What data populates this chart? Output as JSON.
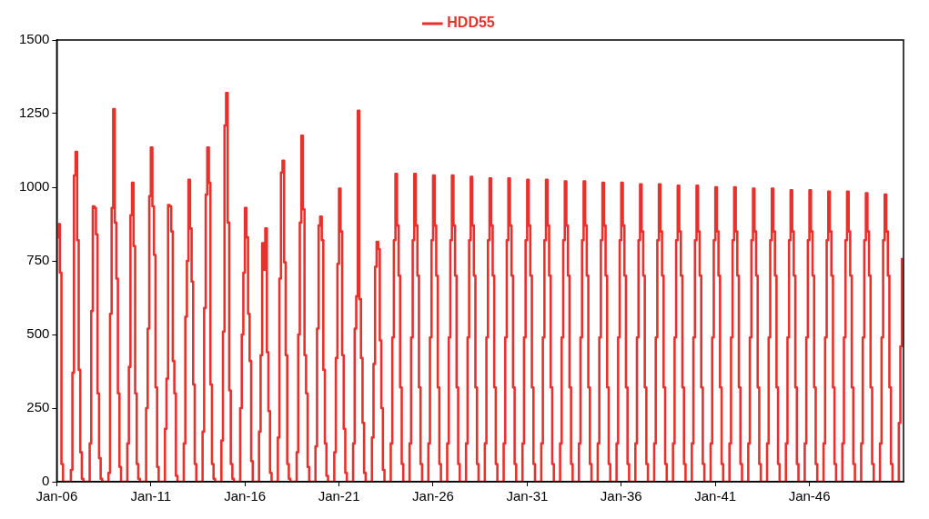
{
  "chart_data": {
    "type": "step",
    "legend": "top",
    "grid": false,
    "marker": "none",
    "xlim": [
      "2006-01",
      "2051-01"
    ],
    "xticks": [
      {
        "value": "2006-01",
        "label": "Jan-06"
      },
      {
        "value": "2011-01",
        "label": "Jan-11"
      },
      {
        "value": "2016-01",
        "label": "Jan-16"
      },
      {
        "value": "2021-01",
        "label": "Jan-21"
      },
      {
        "value": "2026-01",
        "label": "Jan-26"
      },
      {
        "value": "2031-01",
        "label": "Jan-31"
      },
      {
        "value": "2036-01",
        "label": "Jan-36"
      },
      {
        "value": "2041-01",
        "label": "Jan-41"
      },
      {
        "value": "2046-01",
        "label": "Jan-46"
      }
    ],
    "ylim": [
      0,
      1500
    ],
    "yticks": [
      0,
      250,
      500,
      750,
      1000,
      1250,
      1500
    ],
    "series": [
      {
        "name": "HDD55",
        "color": "#e8312c",
        "x": [
          "2006-01",
          "2006-02",
          "2006-03",
          "2006-04",
          "2006-05",
          "2006-10",
          "2006-11",
          "2006-12",
          "2007-01",
          "2007-02",
          "2007-03",
          "2007-04",
          "2007-05",
          "2007-06",
          "2007-10",
          "2007-11",
          "2007-12",
          "2008-01",
          "2008-02",
          "2008-03",
          "2008-04",
          "2008-05",
          "2008-06",
          "2008-10",
          "2008-11",
          "2008-12",
          "2009-01",
          "2009-02",
          "2009-03",
          "2009-04",
          "2009-05",
          "2009-06",
          "2009-10",
          "2009-11",
          "2009-12",
          "2010-01",
          "2010-02",
          "2010-03",
          "2010-04",
          "2010-05",
          "2010-06",
          "2010-10",
          "2010-11",
          "2010-12",
          "2011-01",
          "2011-02",
          "2011-03",
          "2011-04",
          "2011-05",
          "2011-06",
          "2011-10",
          "2011-11",
          "2011-12",
          "2012-01",
          "2012-02",
          "2012-03",
          "2012-04",
          "2012-05",
          "2012-06",
          "2012-10",
          "2012-11",
          "2012-12",
          "2013-01",
          "2013-02",
          "2013-03",
          "2013-04",
          "2013-05",
          "2013-06",
          "2013-10",
          "2013-11",
          "2013-12",
          "2014-01",
          "2014-02",
          "2014-03",
          "2014-04",
          "2014-05",
          "2014-06",
          "2014-10",
          "2014-11",
          "2014-12",
          "2015-01",
          "2015-02",
          "2015-03",
          "2015-04",
          "2015-05",
          "2015-06",
          "2015-10",
          "2015-11",
          "2015-12",
          "2016-01",
          "2016-02",
          "2016-03",
          "2016-04",
          "2016-05",
          "2016-06",
          "2016-10",
          "2016-11",
          "2016-12",
          "2017-01",
          "2017-02",
          "2017-03",
          "2017-04",
          "2017-05",
          "2017-06",
          "2017-10",
          "2017-11",
          "2017-12",
          "2018-01",
          "2018-02",
          "2018-03",
          "2018-04",
          "2018-05",
          "2018-06",
          "2018-10",
          "2018-11",
          "2018-12",
          "2019-01",
          "2019-02",
          "2019-03",
          "2019-04",
          "2019-05",
          "2019-06",
          "2019-10",
          "2019-11",
          "2019-12",
          "2020-01",
          "2020-02",
          "2020-03",
          "2020-04",
          "2020-05",
          "2020-06",
          "2020-10",
          "2020-11",
          "2020-12",
          "2021-01",
          "2021-02",
          "2021-03",
          "2021-04",
          "2021-05",
          "2021-06",
          "2021-10",
          "2021-11",
          "2021-12",
          "2022-01",
          "2022-02",
          "2022-03",
          "2022-04",
          "2022-05",
          "2022-06",
          "2022-10",
          "2022-11",
          "2022-12",
          "2023-01",
          "2023-02",
          "2023-03",
          "2023-04",
          "2023-05",
          "2023-06",
          "2023-10",
          "2023-11",
          "2023-12",
          "2024-01",
          "2024-02",
          "2024-03",
          "2024-04",
          "2024-05",
          "2024-06",
          "2024-10",
          "2024-11",
          "2024-12",
          "2025-01",
          "2025-02",
          "2025-03",
          "2025-04",
          "2025-05",
          "2025-06",
          "2025-10",
          "2025-11",
          "2025-12",
          "2026-01",
          "2026-02",
          "2026-03",
          "2026-04",
          "2026-05",
          "2026-06",
          "2026-10",
          "2026-11",
          "2026-12",
          "2027-01",
          "2027-02",
          "2027-03",
          "2027-04",
          "2027-05",
          "2027-06",
          "2027-10",
          "2027-11",
          "2027-12",
          "2028-01",
          "2028-02",
          "2028-03",
          "2028-04",
          "2028-05",
          "2028-06",
          "2028-10",
          "2028-11",
          "2028-12",
          "2029-01",
          "2029-02",
          "2029-03",
          "2029-04",
          "2029-05",
          "2029-06",
          "2029-10",
          "2029-11",
          "2029-12",
          "2030-01",
          "2030-02",
          "2030-03",
          "2030-04",
          "2030-05",
          "2030-06",
          "2030-10",
          "2030-11",
          "2030-12",
          "2031-01",
          "2031-02",
          "2031-03",
          "2031-04",
          "2031-05",
          "2031-06",
          "2031-10",
          "2031-11",
          "2031-12",
          "2032-01",
          "2032-02",
          "2032-03",
          "2032-04",
          "2032-05",
          "2032-06",
          "2032-10",
          "2032-11",
          "2032-12",
          "2033-01",
          "2033-02",
          "2033-03",
          "2033-04",
          "2033-05",
          "2033-06",
          "2033-10",
          "2033-11",
          "2033-12",
          "2034-01",
          "2034-02",
          "2034-03",
          "2034-04",
          "2034-05",
          "2034-06",
          "2034-10",
          "2034-11",
          "2034-12",
          "2035-01",
          "2035-02",
          "2035-03",
          "2035-04",
          "2035-05",
          "2035-06",
          "2035-10",
          "2035-11",
          "2035-12",
          "2036-01",
          "2036-02",
          "2036-03",
          "2036-04",
          "2036-05",
          "2036-06",
          "2036-10",
          "2036-11",
          "2036-12",
          "2037-01",
          "2037-02",
          "2037-03",
          "2037-04",
          "2037-05",
          "2037-06",
          "2037-10",
          "2037-11",
          "2037-12",
          "2038-01",
          "2038-02",
          "2038-03",
          "2038-04",
          "2038-05",
          "2038-06",
          "2038-10",
          "2038-11",
          "2038-12",
          "2039-01",
          "2039-02",
          "2039-03",
          "2039-04",
          "2039-05",
          "2039-06",
          "2039-10",
          "2039-11",
          "2039-12",
          "2040-01",
          "2040-02",
          "2040-03",
          "2040-04",
          "2040-05",
          "2040-06",
          "2040-10",
          "2040-11",
          "2040-12",
          "2041-01",
          "2041-02",
          "2041-03",
          "2041-04",
          "2041-05",
          "2041-06",
          "2041-10",
          "2041-11",
          "2041-12",
          "2042-01",
          "2042-02",
          "2042-03",
          "2042-04",
          "2042-05",
          "2042-06",
          "2042-10",
          "2042-11",
          "2042-12",
          "2043-01",
          "2043-02",
          "2043-03",
          "2043-04",
          "2043-05",
          "2043-06",
          "2043-10",
          "2043-11",
          "2043-12",
          "2044-01",
          "2044-02",
          "2044-03",
          "2044-04",
          "2044-05",
          "2044-06",
          "2044-10",
          "2044-11",
          "2044-12",
          "2045-01",
          "2045-02",
          "2045-03",
          "2045-04",
          "2045-05",
          "2045-06",
          "2045-10",
          "2045-11",
          "2045-12",
          "2046-01",
          "2046-02",
          "2046-03",
          "2046-04",
          "2046-05",
          "2046-06",
          "2046-10",
          "2046-11",
          "2046-12",
          "2047-01",
          "2047-02",
          "2047-03",
          "2047-04",
          "2047-05",
          "2047-06",
          "2047-10",
          "2047-11",
          "2047-12",
          "2048-01",
          "2048-02",
          "2048-03",
          "2048-04",
          "2048-05",
          "2048-06",
          "2048-10",
          "2048-11",
          "2048-12",
          "2049-01",
          "2049-02",
          "2049-03",
          "2049-04",
          "2049-05",
          "2049-06",
          "2049-10",
          "2049-11",
          "2049-12",
          "2050-01",
          "2050-02",
          "2050-03",
          "2050-04",
          "2050-05",
          "2050-06",
          "2050-10",
          "2050-11",
          "2050-12"
        ],
        "values": [
          830,
          875,
          710,
          60,
          0,
          40,
          370,
          1040,
          1120,
          820,
          380,
          100,
          10,
          0,
          130,
          580,
          935,
          930,
          840,
          300,
          80,
          10,
          0,
          30,
          570,
          930,
          1265,
          880,
          690,
          300,
          50,
          0,
          130,
          390,
          905,
          1015,
          800,
          300,
          60,
          10,
          0,
          250,
          520,
          970,
          1135,
          935,
          770,
          320,
          50,
          0,
          180,
          350,
          940,
          935,
          850,
          410,
          300,
          20,
          0,
          130,
          560,
          750,
          1025,
          860,
          680,
          330,
          60,
          0,
          170,
          590,
          975,
          1135,
          1015,
          330,
          60,
          10,
          0,
          140,
          510,
          1210,
          1320,
          880,
          310,
          60,
          10,
          0,
          250,
          500,
          710,
          930,
          830,
          570,
          410,
          70,
          0,
          170,
          430,
          810,
          720,
          860,
          440,
          240,
          30,
          0,
          150,
          690,
          1050,
          1090,
          745,
          430,
          60,
          10,
          0,
          100,
          500,
          880,
          1175,
          925,
          430,
          300,
          50,
          0,
          120,
          520,
          870,
          900,
          820,
          380,
          130,
          20,
          0,
          100,
          420,
          740,
          995,
          850,
          430,
          180,
          30,
          0,
          130,
          520,
          630,
          1260,
          620,
          420,
          200,
          30,
          0,
          150,
          400,
          730,
          815,
          790,
          480,
          250,
          40,
          0,
          130,
          490,
          820,
          1045,
          870,
          700,
          320,
          60,
          0,
          130,
          490,
          820,
          1045,
          870,
          700,
          320,
          60,
          0,
          130,
          490,
          820,
          1040,
          870,
          700,
          320,
          60,
          0,
          130,
          490,
          820,
          1040,
          870,
          700,
          320,
          60,
          0,
          130,
          490,
          820,
          1035,
          870,
          700,
          320,
          60,
          0,
          130,
          490,
          820,
          1030,
          870,
          700,
          320,
          60,
          0,
          130,
          490,
          820,
          1030,
          870,
          700,
          320,
          60,
          0,
          130,
          490,
          820,
          1025,
          870,
          700,
          320,
          60,
          0,
          130,
          490,
          820,
          1025,
          870,
          700,
          320,
          60,
          0,
          130,
          490,
          820,
          1020,
          870,
          700,
          320,
          60,
          0,
          130,
          490,
          820,
          1020,
          870,
          700,
          320,
          60,
          0,
          130,
          490,
          820,
          1015,
          870,
          700,
          320,
          60,
          0,
          130,
          490,
          820,
          1015,
          870,
          700,
          320,
          60,
          0,
          130,
          490,
          820,
          1010,
          850,
          700,
          320,
          60,
          0,
          130,
          490,
          820,
          1010,
          850,
          700,
          320,
          60,
          0,
          130,
          490,
          820,
          1005,
          850,
          700,
          320,
          60,
          0,
          130,
          490,
          820,
          1005,
          850,
          700,
          320,
          60,
          0,
          130,
          490,
          820,
          1000,
          850,
          700,
          320,
          60,
          0,
          130,
          490,
          820,
          1000,
          850,
          700,
          320,
          60,
          0,
          130,
          490,
          820,
          995,
          850,
          700,
          320,
          60,
          0,
          130,
          490,
          820,
          995,
          850,
          700,
          320,
          60,
          0,
          130,
          490,
          820,
          990,
          850,
          700,
          320,
          60,
          0,
          130,
          490,
          820,
          990,
          850,
          700,
          320,
          60,
          0,
          130,
          490,
          820,
          985,
          850,
          700,
          320,
          60,
          0,
          130,
          490,
          820,
          985,
          850,
          700,
          320,
          60,
          0,
          130,
          490,
          820,
          980,
          850,
          700,
          320,
          60,
          0,
          130,
          490,
          820,
          975,
          850,
          700,
          320,
          60,
          0,
          200,
          460,
          760
        ]
      }
    ]
  }
}
